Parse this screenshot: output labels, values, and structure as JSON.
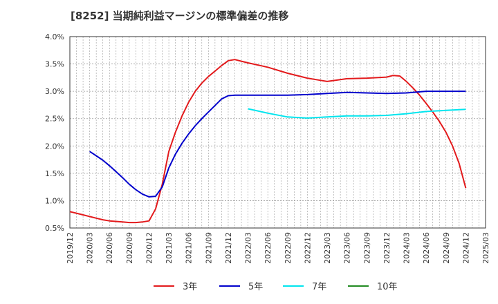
{
  "title": "[8252]  当期純利益マージンの標準偏差の推移",
  "colors": {
    "3年": "#e31a1c",
    "5年": "#0000cc",
    "7年": "#00e5ee",
    "10年": "#228b22",
    "grid": "#999999",
    "axis": "#333333"
  },
  "chart_data": {
    "type": "line",
    "title": "[8252]  当期純利益マージンの標準偏差の推移",
    "ylim": [
      0.5,
      4.0
    ],
    "yticks": [
      "0.5%",
      "1.0%",
      "1.5%",
      "2.0%",
      "2.5%",
      "3.0%",
      "3.5%",
      "4.0%"
    ],
    "ytick_values": [
      0.5,
      1.0,
      1.5,
      2.0,
      2.5,
      3.0,
      3.5,
      4.0
    ],
    "xlim": [
      "2019/12",
      "2025/03"
    ],
    "xticks": [
      "2019/12",
      "2020/03",
      "2020/06",
      "2020/09",
      "2020/12",
      "2021/03",
      "2021/06",
      "2021/09",
      "2021/12",
      "2022/03",
      "2022/06",
      "2022/09",
      "2022/12",
      "2023/03",
      "2023/06",
      "2023/09",
      "2023/12",
      "2024/03",
      "2024/06",
      "2024/09",
      "2024/12",
      "2025/03"
    ],
    "grid": true,
    "legend_position": "bottom",
    "series": [
      {
        "name": "3年",
        "x": [
          "2019/12",
          "2020/01",
          "2020/02",
          "2020/03",
          "2020/04",
          "2020/05",
          "2020/06",
          "2020/07",
          "2020/08",
          "2020/09",
          "2020/10",
          "2020/11",
          "2020/12",
          "2021/01",
          "2021/02",
          "2021/03",
          "2021/04",
          "2021/05",
          "2021/06",
          "2021/07",
          "2021/08",
          "2021/09",
          "2021/10",
          "2021/11",
          "2021/12",
          "2022/01",
          "2022/02",
          "2022/03",
          "2022/06",
          "2022/09",
          "2022/12",
          "2023/02",
          "2023/03",
          "2023/06",
          "2023/09",
          "2023/12",
          "2024/01",
          "2024/02",
          "2024/03",
          "2024/04",
          "2024/05",
          "2024/06",
          "2024/07",
          "2024/08",
          "2024/09",
          "2024/10",
          "2024/11",
          "2024/12"
        ],
        "values": [
          0.8,
          0.77,
          0.74,
          0.71,
          0.68,
          0.65,
          0.63,
          0.62,
          0.61,
          0.6,
          0.6,
          0.61,
          0.63,
          0.85,
          1.3,
          1.9,
          2.25,
          2.55,
          2.8,
          3.0,
          3.15,
          3.27,
          3.37,
          3.47,
          3.56,
          3.58,
          3.55,
          3.52,
          3.44,
          3.33,
          3.24,
          3.2,
          3.18,
          3.23,
          3.24,
          3.26,
          3.29,
          3.28,
          3.18,
          3.06,
          2.93,
          2.78,
          2.62,
          2.45,
          2.25,
          2.0,
          1.68,
          1.23
        ]
      },
      {
        "name": "5年",
        "x": [
          "2020/03",
          "2020/04",
          "2020/05",
          "2020/06",
          "2020/07",
          "2020/08",
          "2020/09",
          "2020/10",
          "2020/11",
          "2020/12",
          "2021/01",
          "2021/02",
          "2021/03",
          "2021/04",
          "2021/05",
          "2021/06",
          "2021/07",
          "2021/08",
          "2021/09",
          "2021/10",
          "2021/11",
          "2021/12",
          "2022/01",
          "2022/03",
          "2022/06",
          "2022/09",
          "2022/12",
          "2023/03",
          "2023/06",
          "2023/09",
          "2023/12",
          "2024/03",
          "2024/06",
          "2024/09",
          "2024/12"
        ],
        "values": [
          1.9,
          1.82,
          1.74,
          1.64,
          1.53,
          1.42,
          1.3,
          1.2,
          1.12,
          1.07,
          1.08,
          1.25,
          1.6,
          1.85,
          2.05,
          2.22,
          2.37,
          2.5,
          2.62,
          2.74,
          2.86,
          2.92,
          2.93,
          2.93,
          2.93,
          2.93,
          2.94,
          2.96,
          2.98,
          2.97,
          2.96,
          2.97,
          3.0,
          3.0,
          3.0
        ]
      },
      {
        "name": "7年",
        "x": [
          "2022/03",
          "2022/06",
          "2022/09",
          "2022/12",
          "2023/03",
          "2023/06",
          "2023/09",
          "2023/12",
          "2024/03",
          "2024/06",
          "2024/09",
          "2024/12"
        ],
        "values": [
          2.68,
          2.6,
          2.53,
          2.51,
          2.53,
          2.55,
          2.55,
          2.56,
          2.59,
          2.63,
          2.65,
          2.67
        ]
      },
      {
        "name": "10年",
        "x": [],
        "values": []
      }
    ]
  }
}
